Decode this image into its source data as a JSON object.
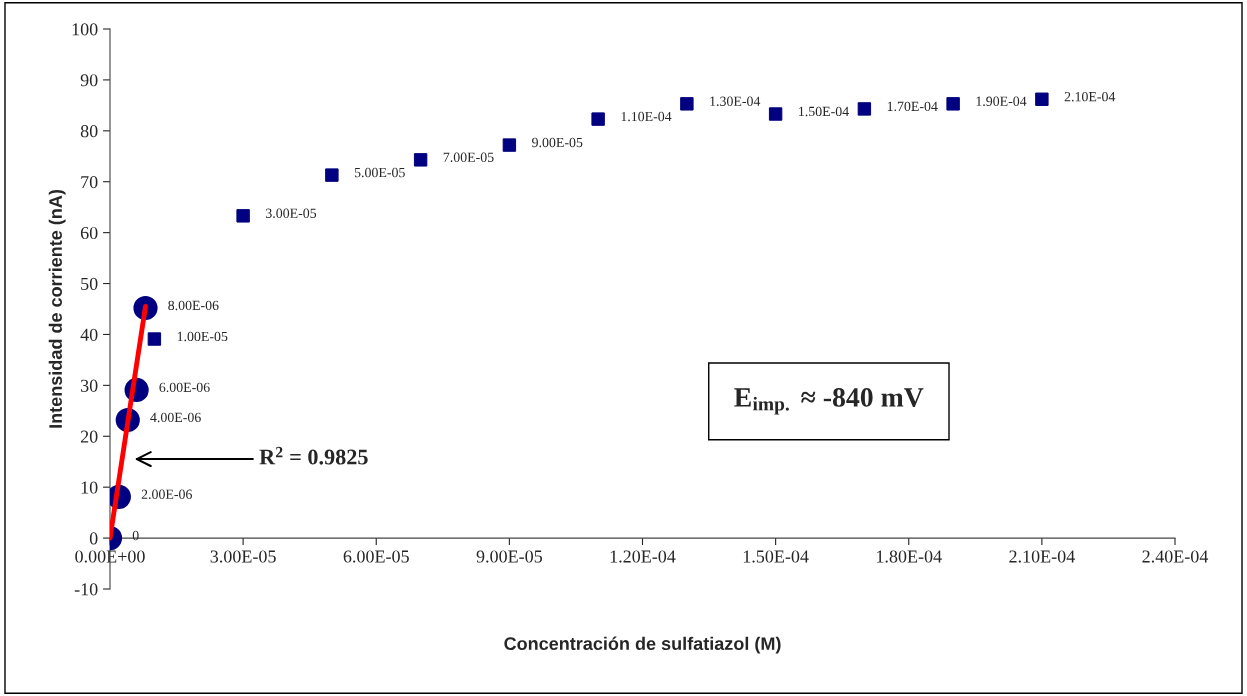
{
  "chart_data": {
    "type": "scatter",
    "xlabel": "Concentración de sulfatiazol (M)",
    "ylabel": "Intensidad de corriente (nA)",
    "xlim": [
      0,
      0.00024
    ],
    "ylim": [
      -10,
      100
    ],
    "xticks": [
      {
        "value": 0,
        "label": "0.00E+00"
      },
      {
        "value": 3e-05,
        "label": "3.00E-05"
      },
      {
        "value": 6e-05,
        "label": "6.00E-05"
      },
      {
        "value": 9e-05,
        "label": "9.00E-05"
      },
      {
        "value": 0.00012,
        "label": "1.20E-04"
      },
      {
        "value": 0.00015,
        "label": "1.50E-04"
      },
      {
        "value": 0.00018,
        "label": "1.80E-04"
      },
      {
        "value": 0.00021,
        "label": "2.10E-04"
      },
      {
        "value": 0.00024,
        "label": "2.40E-04"
      }
    ],
    "yticks": [
      -10,
      0,
      10,
      20,
      30,
      40,
      50,
      60,
      70,
      80,
      90,
      100
    ],
    "grid": false,
    "legend": false,
    "series": [
      {
        "marker": "circle",
        "color": "#000080",
        "x": [
          0,
          2e-06,
          4e-06,
          6e-06,
          8e-06
        ],
        "values": [
          0,
          8.1,
          23.2,
          29.1,
          45.2
        ]
      },
      {
        "marker": "square",
        "color": "#000080",
        "x": [
          1e-05,
          3e-05,
          5e-05,
          7e-05,
          9e-05,
          0.00011,
          0.00013,
          0.00015,
          0.00017,
          0.00019,
          0.00021
        ],
        "values": [
          39.1,
          63.3,
          71.3,
          74.3,
          77.2,
          82.3,
          85.3,
          83.3,
          84.3,
          85.3,
          86.2
        ]
      },
      {
        "type": "line",
        "marker": "none",
        "color": "#ff0000",
        "x": [
          0,
          8e-06
        ],
        "values": [
          0,
          45.5
        ]
      }
    ],
    "annotations": [
      {
        "text": "0",
        "x": 0,
        "y": 0
      },
      {
        "text": "2.00E-06",
        "x": 2e-06,
        "y": 8.1
      },
      {
        "text": "4.00E-06",
        "x": 4e-06,
        "y": 23.2
      },
      {
        "text": "6.00E-06",
        "x": 6e-06,
        "y": 29.1
      },
      {
        "text": "8.00E-06",
        "x": 8e-06,
        "y": 45.2
      },
      {
        "text": "1.00E-05",
        "x": 1e-05,
        "y": 39.1
      },
      {
        "text": "3.00E-05",
        "x": 3e-05,
        "y": 63.3
      },
      {
        "text": "5.00E-05",
        "x": 5e-05,
        "y": 71.3
      },
      {
        "text": "7.00E-05",
        "x": 7e-05,
        "y": 74.3
      },
      {
        "text": "9.00E-05",
        "x": 9e-05,
        "y": 77.2
      },
      {
        "text": "1.10E-04",
        "x": 0.00011,
        "y": 82.3
      },
      {
        "text": "1.30E-04",
        "x": 0.00013,
        "y": 85.3
      },
      {
        "text": "1.50E-04",
        "x": 0.00015,
        "y": 83.3
      },
      {
        "text": "1.70E-04",
        "x": 0.00017,
        "y": 84.3
      },
      {
        "text": "1.90E-04",
        "x": 0.00019,
        "y": 85.3
      },
      {
        "text": "2.10E-04",
        "x": 0.00021,
        "y": 86.2
      },
      "R$^{2}$ = 0.9825",
      "E$_{imp.}$ ≈ -840 mV"
    ]
  }
}
